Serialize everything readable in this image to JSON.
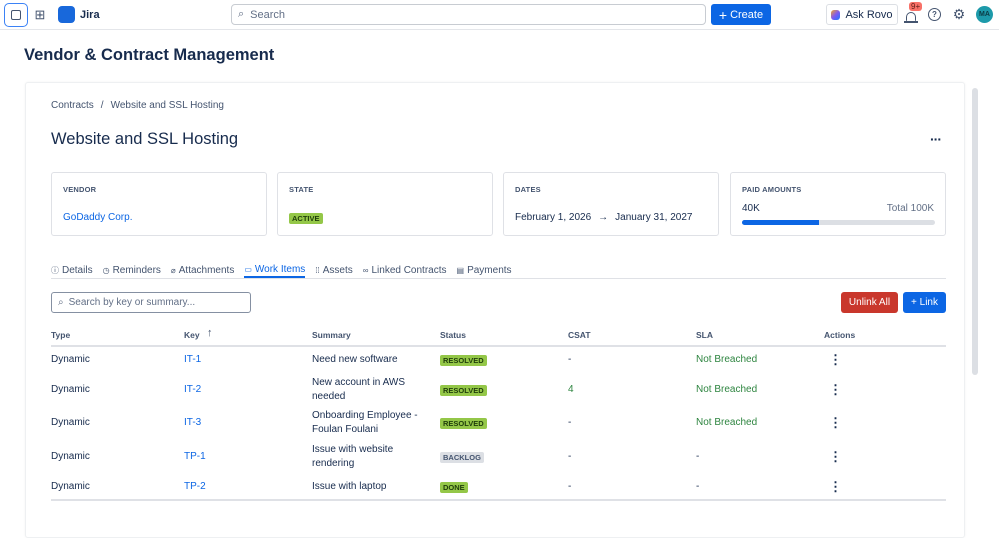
{
  "topbar": {
    "app_name": "Jira",
    "search_placeholder": "Search",
    "create_label": "Create",
    "ask_rovo_label": "Ask Rovo",
    "notification_badge": "9+",
    "avatar_initials": "MA"
  },
  "page_title": "Vendor & Contract Management",
  "breadcrumb": [
    "Contracts",
    "Website and SSL Hosting"
  ],
  "contract_title": "Website and SSL Hosting",
  "cards": {
    "vendor_label": "VENDOR",
    "vendor": "GoDaddy Corp.",
    "state_label": "STATE",
    "state": "ACTIVE",
    "dates_label": "DATES",
    "start_date": "February 1, 2026",
    "end_date": "January 31, 2027",
    "paid_label": "PAID AMOUNTS",
    "paid": "40K",
    "total": "Total 100K",
    "paid_fraction": 0.4
  },
  "tabs": [
    "Details",
    "Reminders",
    "Attachments",
    "Work Items",
    "Assets",
    "Linked Contracts",
    "Payments"
  ],
  "active_tab": "Work Items",
  "table_search_placeholder": "Search by key or summary...",
  "unlink_all_label": "Unlink All",
  "link_label": "+ Link",
  "columns": [
    "Type",
    "Key",
    "Summary",
    "Status",
    "CSAT",
    "SLA",
    "Actions"
  ],
  "rows": [
    {
      "type": "Dynamic",
      "key": "IT-1",
      "summary": "Need new software",
      "status": "RESOLVED",
      "csat": "-",
      "sla": "Not Breached"
    },
    {
      "type": "Dynamic",
      "key": "IT-2",
      "summary": "New account in AWS needed",
      "status": "RESOLVED",
      "csat": "4",
      "sla": "Not Breached"
    },
    {
      "type": "Dynamic",
      "key": "IT-3",
      "summary": "Onboarding Employee - Foulan Foulani",
      "status": "RESOLVED",
      "csat": "-",
      "sla": "Not Breached"
    },
    {
      "type": "Dynamic",
      "key": "TP-1",
      "summary": "Issue with website rendering",
      "status": "BACKLOG",
      "csat": "-",
      "sla": "-"
    },
    {
      "type": "Dynamic",
      "key": "TP-2",
      "summary": "Issue with laptop",
      "status": "DONE",
      "csat": "-",
      "sla": "-"
    }
  ]
}
